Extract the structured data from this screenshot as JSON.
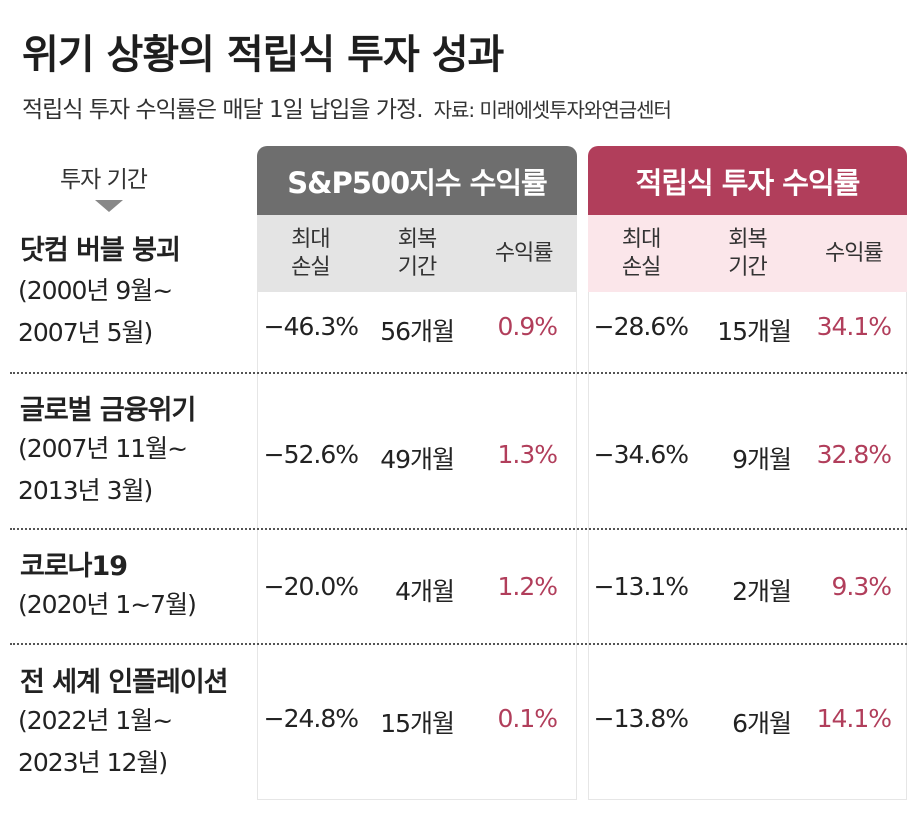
{
  "title": "위기 상황의 적립식 투자 성과",
  "subtitle": "적립식 투자 수익률은 매달 1일 납입을 가정.",
  "source": "자료: 미래에셋투자와연금센터",
  "row_header_label": "투자 기간",
  "groups": {
    "sp500": {
      "label": "S&P500지수 수익률",
      "cols": [
        "최대\n손실",
        "회복\n기간",
        "수익률"
      ]
    },
    "accum": {
      "label": "적립식 투자 수익률",
      "cols": [
        "최대\n손실",
        "회복\n기간",
        "수익률"
      ]
    }
  },
  "colors": {
    "sp500_header": "#6e6e6e",
    "accum_header": "#b13e5b",
    "return_text": "#b13e5b"
  },
  "rows": [
    {
      "name": "닷컴 버블 붕괴",
      "period": "(2000년 9월~\n  2007년 5월)",
      "sp": [
        "−46.3%",
        "56개월",
        "0.9%"
      ],
      "ac": [
        "−28.6%",
        "15개월",
        "34.1%"
      ]
    },
    {
      "name": "글로벌 금융위기",
      "period": "(2007년 11월~\n  2013년 3월)",
      "sp": [
        "−52.6%",
        "49개월",
        "1.3%"
      ],
      "ac": [
        "−34.6%",
        "9개월",
        "32.8%"
      ]
    },
    {
      "name": "코로나19",
      "period": "(2020년 1~7월)",
      "sp": [
        "−20.0%",
        "4개월",
        "1.2%"
      ],
      "ac": [
        "−13.1%",
        "2개월",
        "9.3%"
      ]
    },
    {
      "name": "전 세계 인플레이션",
      "period": "(2022년 1월~\n  2023년 12월)",
      "sp": [
        "−24.8%",
        "15개월",
        "0.1%"
      ],
      "ac": [
        "−13.8%",
        "6개월",
        "14.1%"
      ]
    }
  ]
}
